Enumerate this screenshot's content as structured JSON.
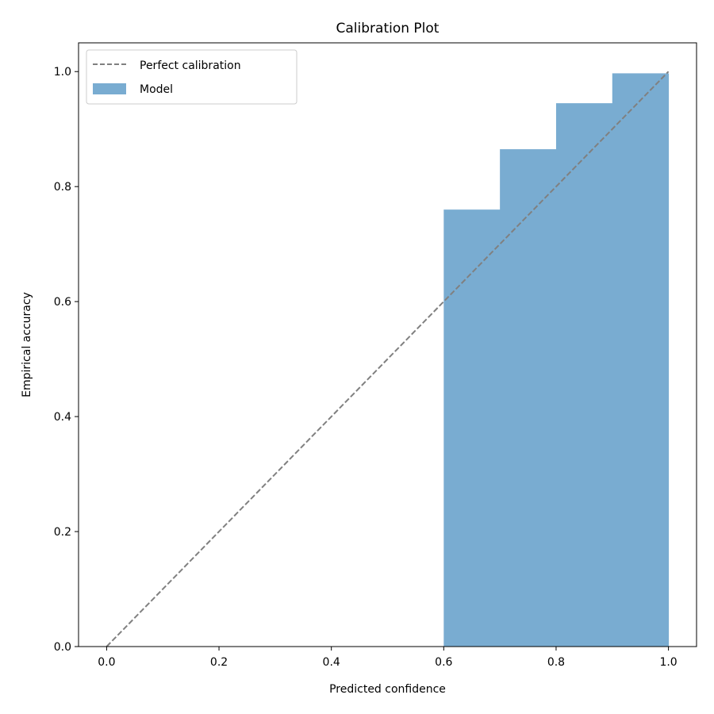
{
  "chart_data": {
    "type": "bar",
    "title": "Calibration Plot",
    "xlabel": "Predicted confidence",
    "ylabel": "Empirical accuracy",
    "xlim": [
      -0.05,
      1.05
    ],
    "ylim": [
      0.0,
      1.05
    ],
    "xticks": [
      0.0,
      0.2,
      0.4,
      0.6,
      0.8,
      1.0
    ],
    "xtick_labels": [
      "0.0",
      "0.2",
      "0.4",
      "0.6",
      "0.8",
      "1.0"
    ],
    "yticks": [
      0.0,
      0.2,
      0.4,
      0.6,
      0.8,
      1.0
    ],
    "ytick_labels": [
      "0.0",
      "0.2",
      "0.4",
      "0.6",
      "0.8",
      "1.0"
    ],
    "grid": false,
    "legend": {
      "placement": "top-left",
      "entries": [
        {
          "label": "Perfect calibration",
          "kind": "dashed-line",
          "color": "#808080"
        },
        {
          "label": "Model",
          "kind": "bar",
          "color": "#79acd1"
        }
      ]
    },
    "reference_line": {
      "name": "Perfect calibration",
      "x": [
        0.0,
        1.0
      ],
      "y": [
        0.0,
        1.0
      ],
      "color": "#808080",
      "style": "dashed"
    },
    "series": [
      {
        "name": "Model",
        "color": "#79acd1",
        "bins": [
          {
            "x0": 0.6,
            "x1": 0.7,
            "value": 0.76
          },
          {
            "x0": 0.7,
            "x1": 0.8,
            "value": 0.865
          },
          {
            "x0": 0.8,
            "x1": 0.9,
            "value": 0.945
          },
          {
            "x0": 0.9,
            "x1": 1.0,
            "value": 0.997
          }
        ]
      }
    ]
  }
}
